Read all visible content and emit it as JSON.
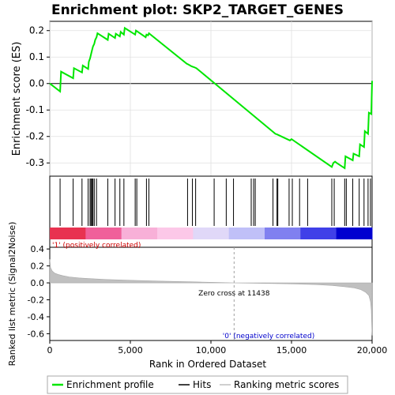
{
  "chart_data": {
    "type": "line",
    "title": "Enrichment plot: SKP2_TARGET_GENES",
    "x_axis": {
      "label": "Rank in Ordered Dataset",
      "range": [
        0,
        20000
      ],
      "ticks": [
        0,
        5000,
        10000,
        15000,
        20000
      ],
      "tick_labels": [
        "0",
        "5,000",
        "10,000",
        "15,000",
        "20,000"
      ]
    },
    "es_panel": {
      "ylabel": "Enrichment score (ES)",
      "ylim": [
        -0.35,
        0.235
      ],
      "ticks": [
        -0.3,
        -0.2,
        -0.1,
        0.0,
        0.1,
        0.2
      ],
      "tick_labels": [
        "-0.3",
        "-0.2",
        "-0.1",
        "0.0",
        "0.1",
        "0.2"
      ],
      "grid": true,
      "zero_line": true,
      "series": [
        {
          "name": "Enrichment profile",
          "color": "#00e600",
          "x": [
            0,
            640,
            700,
            1450,
            1500,
            2000,
            2050,
            2380,
            2420,
            2500,
            2560,
            2620,
            2680,
            2760,
            2820,
            2900,
            2960,
            3600,
            3650,
            4050,
            4100,
            4350,
            4400,
            4600,
            4650,
            5300,
            5350,
            5950,
            6000,
            6100,
            6150,
            8500,
            8600,
            8800,
            8950,
            9100,
            14000,
            14100,
            14900,
            15000,
            17500,
            17600,
            17700,
            17800,
            18300,
            18350,
            18800,
            18850,
            19200,
            19250,
            19500,
            19550,
            19750,
            19800,
            19950,
            20000
          ],
          "y": [
            0.0,
            -0.03,
            0.045,
            0.02,
            0.058,
            0.042,
            0.068,
            0.055,
            0.082,
            0.095,
            0.11,
            0.125,
            0.14,
            0.15,
            0.165,
            0.175,
            0.19,
            0.165,
            0.188,
            0.172,
            0.188,
            0.178,
            0.195,
            0.185,
            0.21,
            0.185,
            0.2,
            0.175,
            0.185,
            0.182,
            0.19,
            0.075,
            0.072,
            0.065,
            0.062,
            0.058,
            -0.19,
            -0.192,
            -0.215,
            -0.21,
            -0.315,
            -0.3,
            -0.295,
            -0.3,
            -0.32,
            -0.275,
            -0.29,
            -0.265,
            -0.275,
            -0.23,
            -0.24,
            -0.18,
            -0.19,
            -0.11,
            -0.115,
            0.01
          ]
        }
      ]
    },
    "hits_panel": {
      "legend_label": "Hits",
      "hit_ranks": [
        640,
        1450,
        2000,
        2380,
        2500,
        2560,
        2620,
        2680,
        2760,
        2900,
        3600,
        4050,
        4350,
        4600,
        5300,
        5400,
        6000,
        6150,
        8550,
        8850,
        9050,
        10200,
        10950,
        11400,
        12500,
        12650,
        12750,
        13850,
        14100,
        14150,
        14850,
        15050,
        15500,
        16000,
        17500,
        17650,
        18300,
        18400,
        18800,
        19200,
        19500,
        19750,
        19900
      ]
    },
    "color_band": {
      "positive_label": "'1' (positively correlated)",
      "negative_label": "'0' (negatively correlated)",
      "colors": [
        "#e83250",
        "#f0609a",
        "#f8b0d8",
        "#fcc8e8",
        "#e0d8f8",
        "#c0c0f8",
        "#8080f0",
        "#4040e8",
        "#0000d0"
      ]
    },
    "metric_panel": {
      "ylabel": "Ranked list metric (Signal2Noise)",
      "legend_label": "Ranking metric scores",
      "ylim": [
        -0.68,
        0.42
      ],
      "ticks": [
        -0.6,
        -0.4,
        -0.2,
        0.0,
        0.2,
        0.4
      ],
      "tick_labels": [
        "-0.6",
        "-0.4",
        "-0.2",
        "0.0",
        "0.2",
        "0.4"
      ],
      "zero_cross_rank": 11438,
      "zero_cross_label": "Zero cross at 11438",
      "x": [
        0,
        50,
        150,
        300,
        500,
        800,
        1200,
        1800,
        2500,
        3500,
        5000,
        7000,
        9000,
        11438,
        13000,
        15000,
        16500,
        17500,
        18300,
        18900,
        19300,
        19600,
        19800,
        19900,
        19950,
        20000
      ],
      "y": [
        0.28,
        0.18,
        0.14,
        0.115,
        0.1,
        0.085,
        0.07,
        0.058,
        0.05,
        0.04,
        0.03,
        0.02,
        0.012,
        0.0,
        -0.005,
        -0.012,
        -0.02,
        -0.03,
        -0.045,
        -0.06,
        -0.08,
        -0.11,
        -0.15,
        -0.22,
        -0.32,
        -0.62
      ]
    },
    "legend": {
      "entries": [
        "Enrichment profile",
        "Hits",
        "Ranking metric scores"
      ],
      "placement": "bottom"
    }
  }
}
